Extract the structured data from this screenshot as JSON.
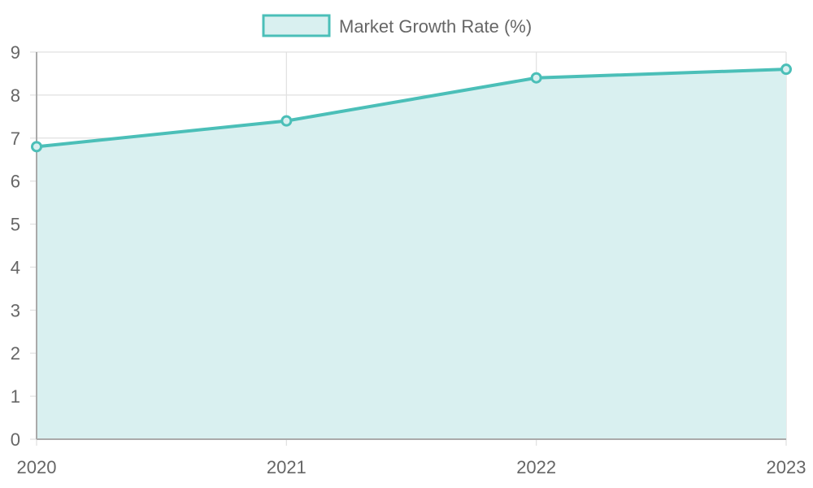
{
  "chart_data": {
    "type": "area",
    "categories": [
      "2020",
      "2021",
      "2022",
      "2023"
    ],
    "series": [
      {
        "name": "Market Growth Rate (%)",
        "values": [
          6.8,
          7.4,
          8.4,
          8.6
        ]
      }
    ],
    "ylim": [
      0,
      9
    ],
    "y_ticks": [
      "0",
      "1",
      "2",
      "3",
      "4",
      "5",
      "6",
      "7",
      "8",
      "9"
    ],
    "grid": true,
    "legend_position": "top-center",
    "colors": {
      "line": "#4bbfb8",
      "fill": "#d9f0f0",
      "grid": "#e0e0e0",
      "axis": "#aaaaaa",
      "text": "#666666"
    }
  }
}
